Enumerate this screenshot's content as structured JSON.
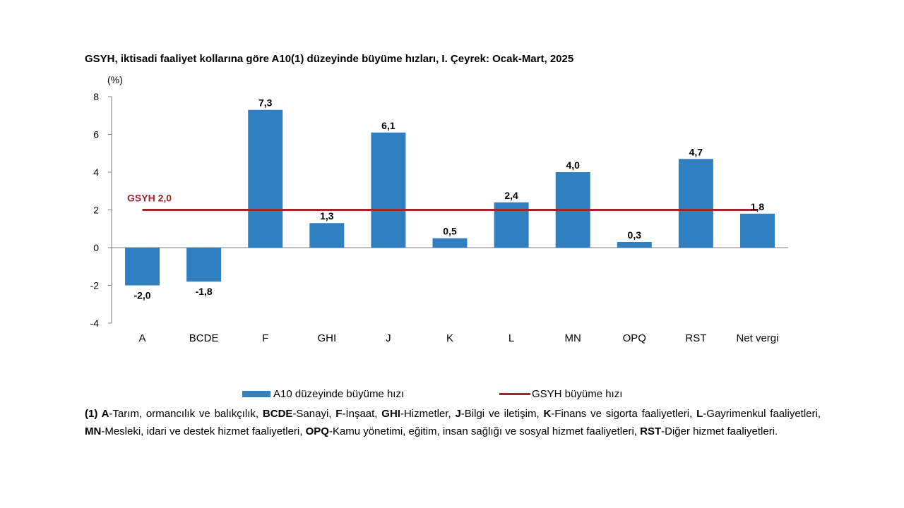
{
  "chart_data": {
    "type": "bar",
    "title": "GSYH, iktisadi faaliyet kollarına göre A10(1) düzeyinde büyüme hızları, I. Çeyrek: Ocak-Mart, 2025",
    "ylabel": "(%)",
    "xlabel": "",
    "ylim": [
      -4,
      8
    ],
    "yticks": [
      "8",
      "6",
      "4",
      "2",
      "0",
      "-2",
      "-4"
    ],
    "ytick_values": [
      8,
      6,
      4,
      2,
      0,
      -2,
      -4
    ],
    "categories": [
      "A",
      "BCDE",
      "F",
      "GHI",
      "J",
      "K",
      "L",
      "MN",
      "OPQ",
      "RST",
      "Net vergi"
    ],
    "series": [
      {
        "name": "A10 düzeyinde büyüme hızı",
        "type": "bar",
        "color": "#2f7fc1",
        "values": [
          -2.0,
          -1.8,
          7.3,
          1.3,
          6.1,
          0.5,
          2.4,
          4.0,
          0.3,
          4.7,
          1.8
        ],
        "labels": [
          "-2,0",
          "-1,8",
          "7,3",
          "1,3",
          "6,1",
          "0,5",
          "2,4",
          "4,0",
          "0,3",
          "4,7",
          "1,8"
        ]
      }
    ],
    "reference_line": {
      "name": "GSYH büyüme hızı",
      "value": 2.0,
      "label": "GSYH 2,0",
      "color": "#a0242b"
    }
  },
  "legend": {
    "bar_label": "A10 düzeyinde büyüme hızı",
    "line_label": "GSYH büyüme hızı"
  },
  "footnote": [
    {
      "text": "(1) ",
      "bold": true
    },
    {
      "text": "A",
      "bold": true
    },
    {
      "text": "-Tarım, ormancılık ve balıkçılık, ",
      "bold": false
    },
    {
      "text": "BCDE",
      "bold": true
    },
    {
      "text": "-Sanayi, ",
      "bold": false
    },
    {
      "text": "F",
      "bold": true
    },
    {
      "text": "-İnşaat, ",
      "bold": false
    },
    {
      "text": "GHI",
      "bold": true
    },
    {
      "text": "-Hizmetler, ",
      "bold": false
    },
    {
      "text": "J",
      "bold": true
    },
    {
      "text": "-Bilgi ve iletişim, ",
      "bold": false
    },
    {
      "text": "K",
      "bold": true
    },
    {
      "text": "-Finans ve sigorta faaliyetleri, ",
      "bold": false
    },
    {
      "text": "L",
      "bold": true
    },
    {
      "text": "-Gayrimenkul faaliyetleri, ",
      "bold": false
    },
    {
      "text": "MN",
      "bold": true
    },
    {
      "text": "-Mesleki, idari ve destek hizmet faaliyetleri, ",
      "bold": false
    },
    {
      "text": "OPQ",
      "bold": true
    },
    {
      "text": "-Kamu yönetimi, eğitim, insan sağlığı ve sosyal hizmet faaliyetleri, ",
      "bold": false
    },
    {
      "text": "RST",
      "bold": true
    },
    {
      "text": "-Diğer hizmet faaliyetleri.",
      "bold": false
    }
  ]
}
